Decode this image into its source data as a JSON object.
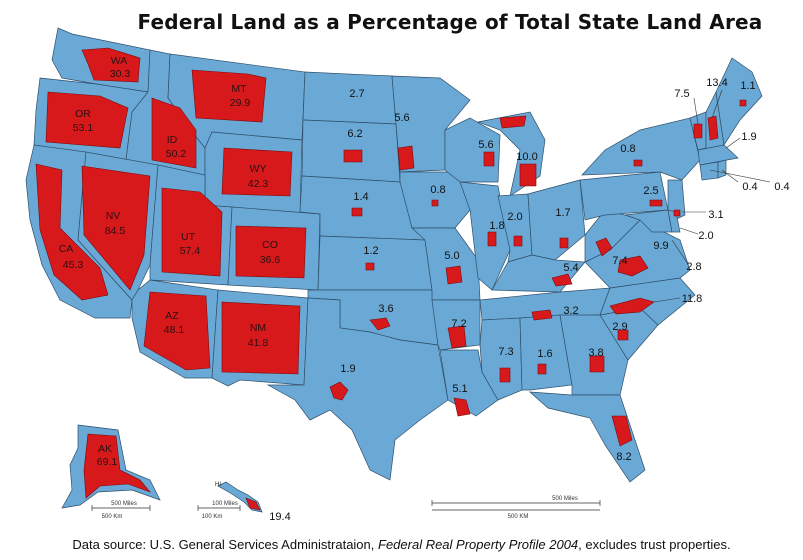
{
  "title": "Federal Land as a Percentage of Total State Land Area",
  "caption": {
    "prefix": "Data source: U.S. General Services Administrataion, ",
    "italic": "Federal Real Property Profile 2004",
    "suffix": ", excludes trust properties."
  },
  "colors": {
    "state_fill": "#6aa9d6",
    "federal_land": "#d8191c"
  },
  "states": [
    {
      "abbr": "WA",
      "value": "30.3"
    },
    {
      "abbr": "OR",
      "value": "53.1"
    },
    {
      "abbr": "ID",
      "value": "50.2"
    },
    {
      "abbr": "MT",
      "value": "29.9"
    },
    {
      "abbr": "WY",
      "value": "42.3"
    },
    {
      "abbr": "NV",
      "value": "84.5"
    },
    {
      "abbr": "UT",
      "value": "57.4"
    },
    {
      "abbr": "CA",
      "value": "45.3"
    },
    {
      "abbr": "CO",
      "value": "36.6"
    },
    {
      "abbr": "AZ",
      "value": "48.1"
    },
    {
      "abbr": "NM",
      "value": "41.8"
    },
    {
      "abbr": "AK",
      "value": "69.1"
    },
    {
      "abbr": "HI",
      "value": "19.4"
    }
  ],
  "values": {
    "nd": "2.7",
    "sd": "6.2",
    "ne": "1.4",
    "ks": "1.2",
    "ok": "3.6",
    "tx": "1.9",
    "mn": "5.6",
    "ia": "0.8",
    "mo": "5.0",
    "ar": "7.2",
    "la": "5.1",
    "wi": "5.6",
    "il": "1.8",
    "mi": "10.0",
    "in": "2.0",
    "oh": "1.7",
    "ky": "5.4",
    "tn": "3.2",
    "ms": "7.3",
    "al": "1.6",
    "ga": "3.8",
    "fl": "8.2",
    "sc": "2.9",
    "nc": "11.8",
    "va": "9.9",
    "wv": "7.4",
    "pa": "2.5",
    "ny": "0.8",
    "vt": "7.5",
    "nh": "13.4",
    "me": "1.1",
    "ma": "1.9",
    "ri": "0.4",
    "ct": "0.4",
    "nj": "3.1",
    "de": "2.0",
    "md": "2.8"
  },
  "scales": {
    "main_miles": "500 Miles",
    "main_km": "500 KM",
    "ak_miles": "500 Miles",
    "ak_km": "500 Km",
    "hi_miles": "100 Miles",
    "hi_km": "100 Km"
  }
}
